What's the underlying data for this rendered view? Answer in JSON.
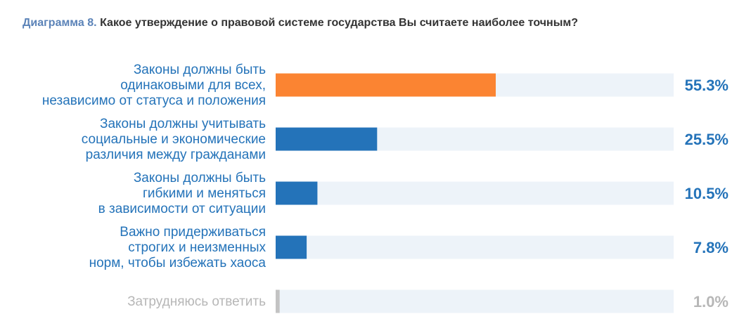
{
  "title_prefix": "Диаграмма 8.",
  "title_text": "Какое утверждение о правовой системе государства Вы считаете наиболее точным?",
  "chart_data": {
    "type": "bar",
    "orientation": "horizontal",
    "categories": [
      [
        "Законы должны быть",
        "одинаковыми для всех,",
        "независимо от статуса и положения"
      ],
      [
        "Законы должны учитывать",
        "социальные и экономические",
        "различия между гражданами"
      ],
      [
        "Законы должны быть",
        "гибкими и меняться",
        "в зависимости от ситуации"
      ],
      [
        "Важно придерживаться",
        "строгих и неизменных",
        "норм, чтобы избежать хаоса"
      ],
      [
        "Затрудняюсь ответить"
      ]
    ],
    "values": [
      55.3,
      25.5,
      10.5,
      7.8,
      1.0
    ],
    "value_labels": [
      "55.3%",
      "25.5%",
      "10.5%",
      "7.8%",
      "1.0%"
    ],
    "xlim": [
      0,
      100
    ],
    "grid": false,
    "legend": "none",
    "colors": {
      "highlight": "#fb8432",
      "bar": "#2473b9",
      "neutral": "#c3c3c3",
      "track": "#edf3f9",
      "label": "#2473b9",
      "neutral_label": "#b7b7b7"
    }
  }
}
